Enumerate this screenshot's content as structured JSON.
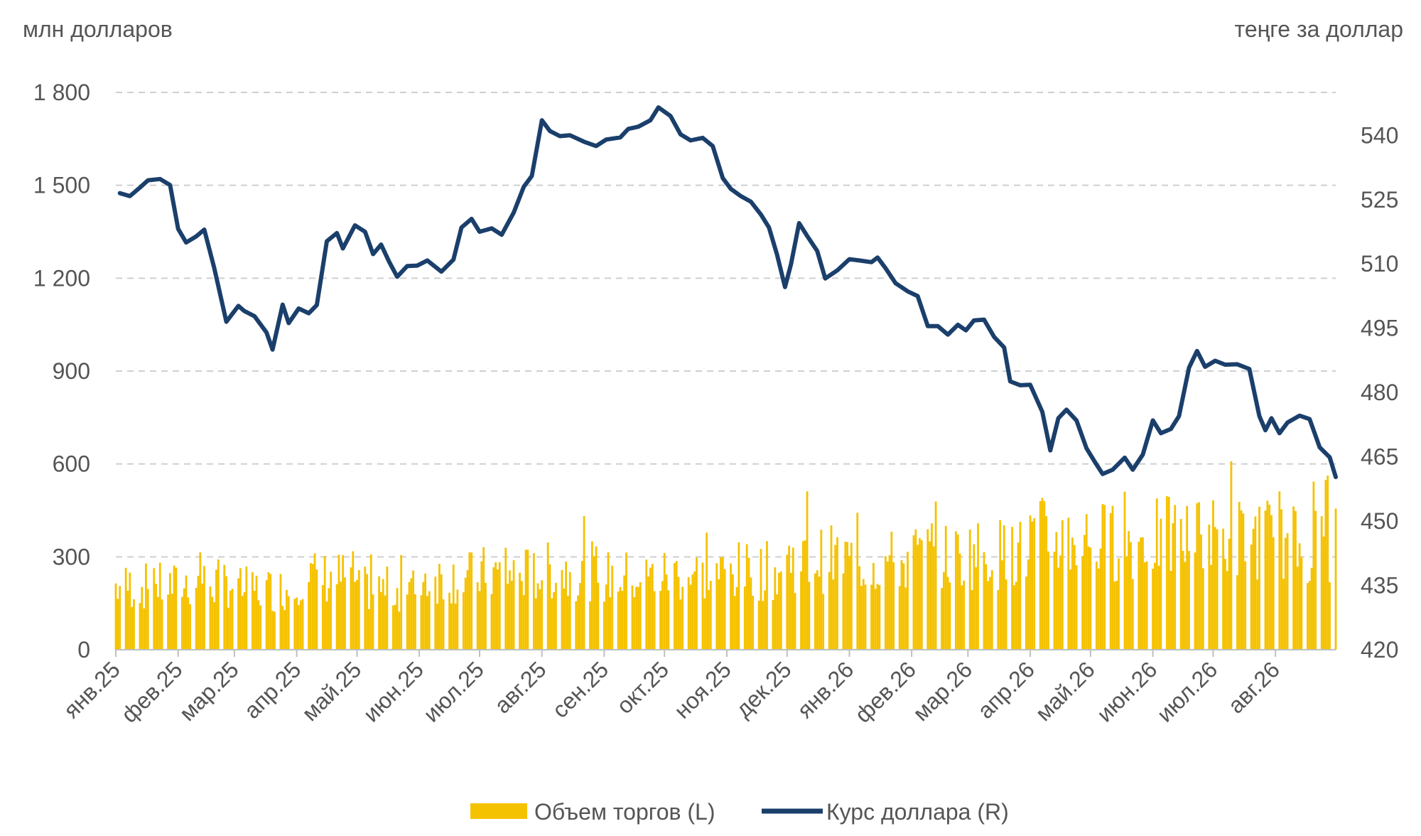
{
  "chart_data": {
    "type": "bar+line",
    "title": "",
    "left_axis": {
      "unit": "млн долларов",
      "ylim": [
        0,
        1800
      ],
      "ticks": [
        0,
        300,
        600,
        900,
        1200,
        1500,
        1800
      ]
    },
    "right_axis": {
      "unit": "теңге за доллар",
      "ylim": [
        420,
        550
      ],
      "ticks": [
        420,
        435,
        450,
        465,
        480,
        495,
        510,
        525,
        540
      ]
    },
    "x_axis": {
      "type": "date",
      "range": [
        "2025-01-01",
        "2026-08-31"
      ],
      "tick_labels": [
        "янв.25",
        "фев.25",
        "мар.25",
        "апр.25",
        "май.25",
        "июн.25",
        "июл.25",
        "авг.25",
        "сен.25",
        "окт.25",
        "ноя.25",
        "дек.25",
        "янв.26",
        "фев.26",
        "мар.26",
        "апр.26",
        "май.26",
        "июн.26",
        "июл.26",
        "авг.26"
      ]
    },
    "grid": "horizontal-dashed",
    "legend_position": "bottom-center",
    "series": [
      {
        "name": "Объем торгов (L)",
        "type": "bar",
        "axis": "left",
        "color": "#F5C200",
        "monthly_level": [
          {
            "month": "2025-01",
            "typical": 210,
            "max": 300
          },
          {
            "month": "2025-02",
            "typical": 220,
            "max": 350
          },
          {
            "month": "2025-03",
            "typical": 200,
            "max": 290
          },
          {
            "month": "2025-04",
            "typical": 240,
            "max": 450
          },
          {
            "month": "2025-05",
            "typical": 200,
            "max": 330
          },
          {
            "month": "2025-06",
            "typical": 240,
            "max": 390
          },
          {
            "month": "2025-07",
            "typical": 250,
            "max": 350
          },
          {
            "month": "2025-08",
            "typical": 260,
            "max": 440
          },
          {
            "month": "2025-09",
            "typical": 240,
            "max": 370
          },
          {
            "month": "2025-10",
            "typical": 250,
            "max": 390
          },
          {
            "month": "2025-11",
            "typical": 260,
            "max": 400
          },
          {
            "month": "2025-12",
            "typical": 300,
            "max": 520
          },
          {
            "month": "2026-01",
            "typical": 290,
            "max": 510
          },
          {
            "month": "2026-02",
            "typical": 310,
            "max": 480
          },
          {
            "month": "2026-03",
            "typical": 320,
            "max": 460
          },
          {
            "month": "2026-04",
            "typical": 370,
            "max": 630
          },
          {
            "month": "2026-05",
            "typical": 360,
            "max": 530
          },
          {
            "month": "2026-06",
            "typical": 370,
            "max": 560
          },
          {
            "month": "2026-07",
            "typical": 370,
            "max": 620
          },
          {
            "month": "2026-08",
            "typical": 350,
            "max": 600
          }
        ]
      },
      {
        "name": "Курс доллара (R)",
        "type": "line",
        "axis": "right",
        "color": "#1B3F6B",
        "points": [
          [
            "2025-01-03",
            526.5
          ],
          [
            "2025-01-08",
            525.8
          ],
          [
            "2025-01-13",
            527.8
          ],
          [
            "2025-01-17",
            529.5
          ],
          [
            "2025-01-23",
            529.8
          ],
          [
            "2025-01-28",
            528.4
          ],
          [
            "2025-02-01",
            518.2
          ],
          [
            "2025-02-05",
            515.0
          ],
          [
            "2025-02-10",
            516.4
          ],
          [
            "2025-02-14",
            518.0
          ],
          [
            "2025-02-19",
            509.0
          ],
          [
            "2025-02-25",
            496.5
          ],
          [
            "2025-03-03",
            500.2
          ],
          [
            "2025-03-06",
            499.0
          ],
          [
            "2025-03-11",
            497.8
          ],
          [
            "2025-03-17",
            494.0
          ],
          [
            "2025-03-20",
            490.0
          ],
          [
            "2025-03-25",
            500.5
          ],
          [
            "2025-03-28",
            496.2
          ],
          [
            "2025-04-02",
            499.6
          ],
          [
            "2025-04-07",
            498.5
          ],
          [
            "2025-04-11",
            500.4
          ],
          [
            "2025-04-16",
            515.3
          ],
          [
            "2025-04-21",
            517.2
          ],
          [
            "2025-04-24",
            513.6
          ],
          [
            "2025-04-30",
            519.0
          ],
          [
            "2025-05-05",
            517.5
          ],
          [
            "2025-05-09",
            512.3
          ],
          [
            "2025-05-13",
            514.5
          ],
          [
            "2025-05-17",
            510.5
          ],
          [
            "2025-05-21",
            507.0
          ],
          [
            "2025-05-26",
            509.5
          ],
          [
            "2025-05-31",
            509.6
          ],
          [
            "2025-06-05",
            510.8
          ],
          [
            "2025-06-12",
            508.2
          ],
          [
            "2025-06-18",
            511.0
          ],
          [
            "2025-06-22",
            518.5
          ],
          [
            "2025-06-27",
            520.5
          ],
          [
            "2025-07-01",
            517.5
          ],
          [
            "2025-07-07",
            518.3
          ],
          [
            "2025-07-12",
            516.8
          ],
          [
            "2025-07-18",
            522.0
          ],
          [
            "2025-07-23",
            528.0
          ],
          [
            "2025-07-27",
            530.5
          ],
          [
            "2025-08-01",
            543.5
          ],
          [
            "2025-08-05",
            541.0
          ],
          [
            "2025-08-10",
            539.8
          ],
          [
            "2025-08-15",
            540.0
          ],
          [
            "2025-08-22",
            538.5
          ],
          [
            "2025-08-28",
            537.5
          ],
          [
            "2025-09-02",
            539.0
          ],
          [
            "2025-09-09",
            539.5
          ],
          [
            "2025-09-13",
            541.5
          ],
          [
            "2025-09-18",
            542.0
          ],
          [
            "2025-09-24",
            543.5
          ],
          [
            "2025-09-28",
            546.5
          ],
          [
            "2025-10-04",
            544.5
          ],
          [
            "2025-10-09",
            540.2
          ],
          [
            "2025-10-14",
            538.8
          ],
          [
            "2025-10-20",
            539.4
          ],
          [
            "2025-10-25",
            537.5
          ],
          [
            "2025-10-30",
            530.0
          ],
          [
            "2025-11-03",
            527.5
          ],
          [
            "2025-11-08",
            525.8
          ],
          [
            "2025-11-13",
            524.5
          ],
          [
            "2025-11-18",
            521.5
          ],
          [
            "2025-11-22",
            518.5
          ],
          [
            "2025-11-26",
            512.2
          ],
          [
            "2025-11-30",
            504.6
          ],
          [
            "2025-12-03",
            510.0
          ],
          [
            "2025-12-07",
            519.5
          ],
          [
            "2025-12-11",
            516.5
          ],
          [
            "2025-12-16",
            513.0
          ],
          [
            "2025-12-20",
            506.6
          ],
          [
            "2025-12-26",
            508.5
          ],
          [
            "2026-01-01",
            511.1
          ],
          [
            "2026-01-06",
            510.8
          ],
          [
            "2026-01-12",
            510.4
          ],
          [
            "2026-01-15",
            511.5
          ],
          [
            "2026-01-19",
            509.0
          ],
          [
            "2026-01-24",
            505.5
          ],
          [
            "2026-01-30",
            503.6
          ],
          [
            "2026-02-04",
            502.5
          ],
          [
            "2026-02-09",
            495.5
          ],
          [
            "2026-02-14",
            495.5
          ],
          [
            "2026-02-19",
            493.5
          ],
          [
            "2026-02-24",
            495.8
          ],
          [
            "2026-02-28",
            494.5
          ],
          [
            "2026-03-04",
            496.8
          ],
          [
            "2026-03-09",
            497.0
          ],
          [
            "2026-03-14",
            493.0
          ],
          [
            "2026-03-19",
            490.5
          ],
          [
            "2026-03-22",
            482.6
          ],
          [
            "2026-03-27",
            481.7
          ],
          [
            "2026-04-01",
            481.8
          ],
          [
            "2026-04-07",
            475.5
          ],
          [
            "2026-04-11",
            466.5
          ],
          [
            "2026-04-15",
            474.0
          ],
          [
            "2026-04-19",
            476.0
          ],
          [
            "2026-04-24",
            473.5
          ],
          [
            "2026-04-29",
            467.0
          ],
          [
            "2026-05-03",
            463.9
          ],
          [
            "2026-05-07",
            461.0
          ],
          [
            "2026-05-12",
            462.0
          ],
          [
            "2026-05-18",
            464.8
          ],
          [
            "2026-05-22",
            462.0
          ],
          [
            "2026-05-27",
            465.5
          ],
          [
            "2026-06-01",
            473.5
          ],
          [
            "2026-06-05",
            470.5
          ],
          [
            "2026-06-10",
            471.5
          ],
          [
            "2026-06-14",
            474.5
          ],
          [
            "2026-06-19",
            485.8
          ],
          [
            "2026-06-23",
            489.7
          ],
          [
            "2026-06-27",
            486.0
          ],
          [
            "2026-07-02",
            487.4
          ],
          [
            "2026-07-07",
            486.5
          ],
          [
            "2026-07-13",
            486.6
          ],
          [
            "2026-07-19",
            485.5
          ],
          [
            "2026-07-24",
            474.5
          ],
          [
            "2026-07-27",
            471.2
          ],
          [
            "2026-07-30",
            474.0
          ],
          [
            "2026-08-03",
            470.5
          ],
          [
            "2026-08-07",
            473.0
          ],
          [
            "2026-08-13",
            474.6
          ],
          [
            "2026-08-18",
            473.8
          ],
          [
            "2026-08-23",
            467.2
          ],
          [
            "2026-08-28",
            464.9
          ],
          [
            "2026-08-31",
            460.3
          ]
        ]
      }
    ]
  }
}
